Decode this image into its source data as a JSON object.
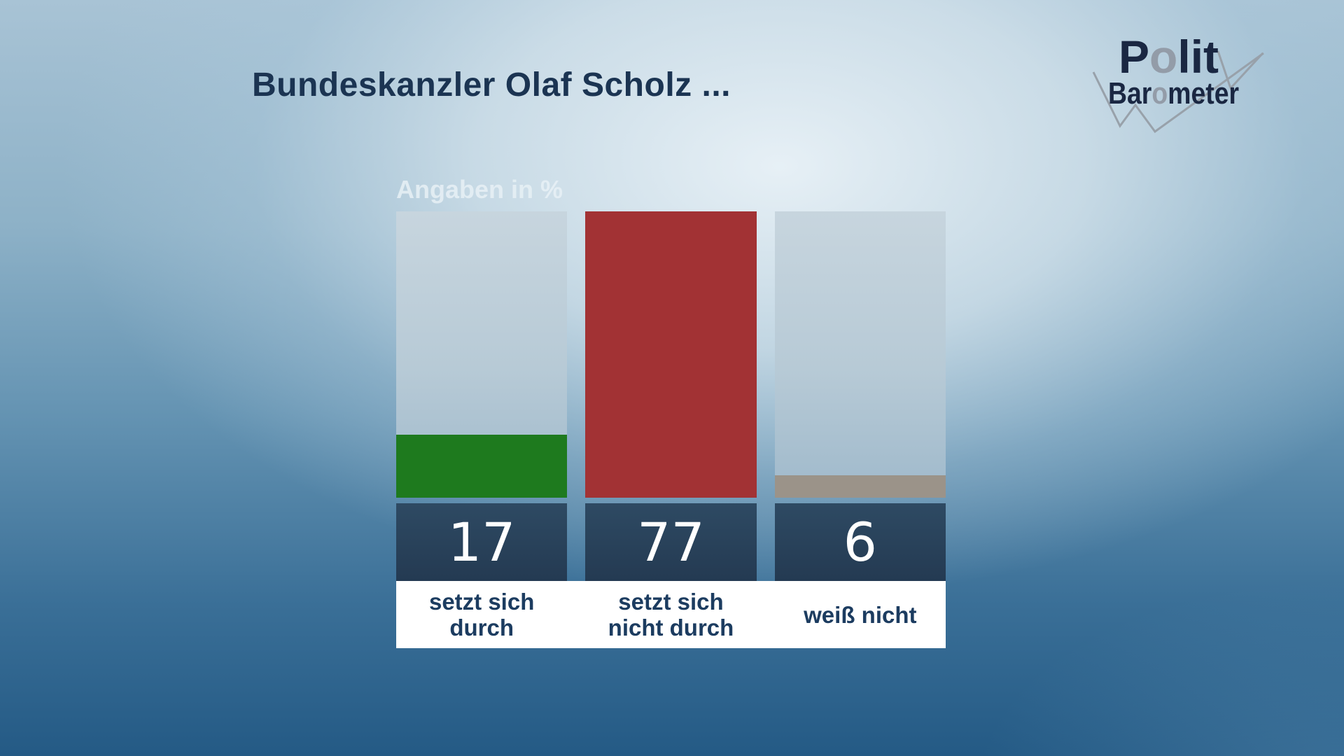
{
  "page": {
    "title": "Bundeskanzler Olaf Scholz ...",
    "units_label": "Angaben in %"
  },
  "logo": {
    "word1": {
      "pre": "P",
      "o": "o",
      "post": "lit"
    },
    "word2": {
      "pre": "Bar",
      "o": "o",
      "post": "meter"
    }
  },
  "colors": {
    "green": "#1e7a1e",
    "red": "#a23234",
    "gray": "#9b9389",
    "value_band_top": "#2e4a63",
    "value_band_bottom": "#243a52",
    "value_text": "#ffffff",
    "label_text": "#1c3c60",
    "title_text": "#1b3452",
    "units_text": "#e8f1f6",
    "track_top": "#c7d5de",
    "track_bottom": "#9fb9cb",
    "logo_navy": "#1a2742",
    "logo_gray": "#939ca8"
  },
  "chart_data": {
    "type": "bar",
    "title": "Bundeskanzler Olaf Scholz ...",
    "subtitle": "Angaben in %",
    "categories": [
      "setzt sich durch",
      "setzt sich nicht durch",
      "weiß nicht"
    ],
    "category_lines": [
      [
        "setzt sich",
        "durch"
      ],
      [
        "setzt sich",
        "nicht durch"
      ],
      [
        "weiß nicht"
      ]
    ],
    "values": [
      17,
      77,
      6
    ],
    "unit": "%",
    "bar_colors": [
      "#1e7a1e",
      "#a23234",
      "#9b9389"
    ],
    "scale_max": 77,
    "ylim": [
      0,
      77
    ],
    "grid": false,
    "legend": false,
    "value_labels_shown": true
  }
}
